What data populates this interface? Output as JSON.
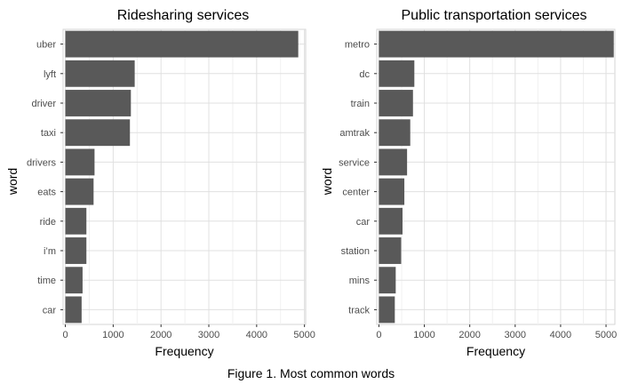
{
  "caption": "Figure 1. Most common words",
  "chart_data": [
    {
      "type": "bar",
      "orientation": "horizontal",
      "title": "Ridesharing services",
      "xlabel": "Frequency",
      "ylabel": "word",
      "xlim": [
        0,
        5000
      ],
      "xticks": [
        "0",
        "1000",
        "2000",
        "3000",
        "4000",
        "5000"
      ],
      "grid": true,
      "bar_color": "#595959",
      "categories": [
        "uber",
        "lyft",
        "driver",
        "taxi",
        "drivers",
        "eats",
        "ride",
        "i’m",
        "time",
        "car"
      ],
      "values": [
        4870,
        1450,
        1370,
        1350,
        610,
        590,
        440,
        440,
        360,
        340
      ]
    },
    {
      "type": "bar",
      "orientation": "horizontal",
      "title": "Public transportation services",
      "xlabel": "Frequency",
      "ylabel": "word",
      "xlim": [
        0,
        5000
      ],
      "xticks": [
        "0",
        "1000",
        "2000",
        "3000",
        "4000",
        "5000"
      ],
      "grid": true,
      "bar_color": "#595959",
      "categories": [
        "metro",
        "dc",
        "train",
        "amtrak",
        "service",
        "center",
        "car",
        "station",
        "mins",
        "track"
      ],
      "values": [
        5170,
        780,
        750,
        690,
        620,
        560,
        520,
        490,
        370,
        350
      ]
    }
  ]
}
